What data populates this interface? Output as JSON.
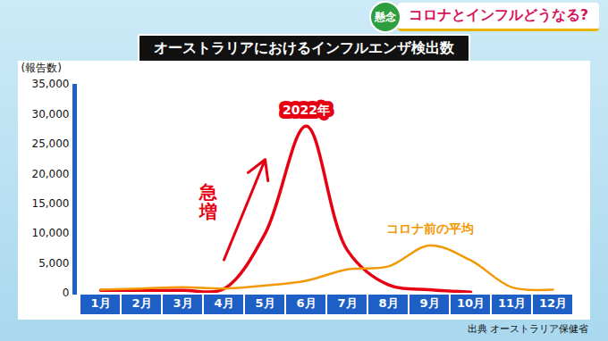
{
  "chart_data": {
    "type": "line",
    "title": "オーストラリアにおけるインフルエンザ検出数",
    "banner_badge": "懸念",
    "banner_text": "コロナとインフルどうなる?",
    "source": "出典 オーストラリア保健省",
    "y_label": "(報告数)",
    "categories": [
      "1月",
      "2月",
      "3月",
      "4月",
      "5月",
      "6月",
      "7月",
      "8月",
      "9月",
      "10月",
      "11月",
      "12月"
    ],
    "series": [
      {
        "name": "2022年",
        "color": "#e60012",
        "values": [
          500,
          500,
          500,
          750,
          10000,
          28000,
          7200,
          1400,
          600,
          200,
          null,
          null
        ]
      },
      {
        "name": "コロナ前の平均",
        "color": "#f39800",
        "values": [
          600,
          800,
          1000,
          800,
          1300,
          2100,
          4000,
          4500,
          8000,
          5500,
          1000,
          600
        ]
      }
    ],
    "ylim": [
      0,
      35000
    ],
    "yticks": [
      0,
      {
        "value": 5000,
        "label": "5,000"
      },
      {
        "value": 10000,
        "label": "10,000"
      },
      {
        "value": 15000,
        "label": "15,000"
      },
      {
        "value": 20000,
        "label": "20,000"
      },
      {
        "value": 25000,
        "label": "25,000"
      },
      {
        "value": 30000,
        "label": "30,000"
      },
      {
        "value": 35000,
        "label": "35,000"
      }
    ],
    "grid": false,
    "annotations": [
      {
        "text": "急増"
      }
    ]
  }
}
